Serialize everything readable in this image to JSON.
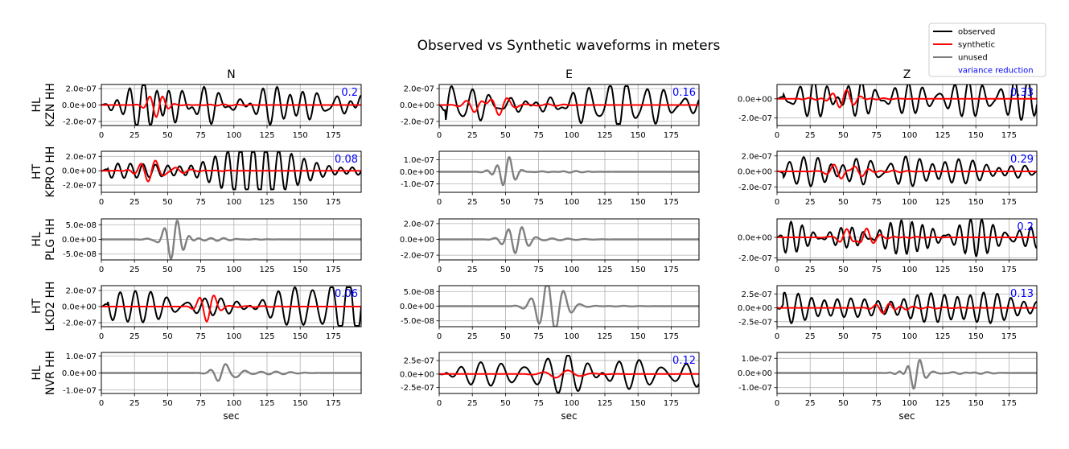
{
  "title": "Observed vs Synthetic waveforms in meters",
  "columns": [
    "N",
    "E",
    "Z"
  ],
  "xlabel": "sec",
  "xlim": [
    0,
    196
  ],
  "xticks": [
    0,
    25,
    50,
    75,
    100,
    125,
    150,
    175
  ],
  "legend": {
    "placement": "top-right",
    "entries": [
      {
        "label": "observed",
        "color": "#000000",
        "kind": "line"
      },
      {
        "label": "synthetic",
        "color": "#ff0000",
        "kind": "line"
      },
      {
        "label": "unused",
        "color": "#808080",
        "kind": "line"
      },
      {
        "label": "variance reduction",
        "color": "#0000ff",
        "kind": "text"
      }
    ]
  },
  "colors": {
    "observed": "#000000",
    "synthetic": "#ff0000",
    "unused": "#808080",
    "vr": "#0000ff",
    "grid": "#b0b0b0"
  },
  "chart_data": {
    "type": "line",
    "grid": true,
    "rows": [
      {
        "station_label": [
          "HL",
          "KZN HH"
        ],
        "panels": [
          {
            "component": "N",
            "used": true,
            "vr": "0.2",
            "ylim": [
              -2.5e-07,
              2.5e-07
            ],
            "yticks": [
              {
                "v": 2e-07,
                "t": "2.0e-07"
              },
              {
                "v": 0,
                "t": "0.0e+00"
              },
              {
                "v": -2e-07,
                "t": "-2.0e-07"
              }
            ],
            "obs": {
              "seed": 11,
              "amp": 2.4e-07,
              "period": 12,
              "decay": false
            },
            "syn": {
              "seed": 12,
              "amp": 2.3e-07,
              "period": 11,
              "center": 44,
              "width": 9
            }
          },
          {
            "component": "E",
            "used": true,
            "vr": "0.16",
            "ylim": [
              -2.5e-07,
              2.5e-07
            ],
            "yticks": [
              {
                "v": 2e-07,
                "t": "2.0e-07"
              },
              {
                "v": 0,
                "t": "0.0e+00"
              },
              {
                "v": -2e-07,
                "t": "-2.0e-07"
              }
            ],
            "obs": {
              "seed": 21,
              "amp": 2.3e-07,
              "period": 12,
              "decay": false
            },
            "syn": {
              "seed": 22,
              "amp": 2e-07,
              "period": 12,
              "center": 38,
              "width": 14
            }
          },
          {
            "component": "Z",
            "used": true,
            "vr": "0.33",
            "ylim": [
              -2.8e-07,
              1.5e-07
            ],
            "yticks": [
              {
                "v": 0,
                "t": "0.0e+00"
              },
              {
                "v": -2e-07,
                "t": "-2.0e-07"
              }
            ],
            "obs": {
              "seed": 31,
              "amp": 2.2e-07,
              "period": 11,
              "decay": false
            },
            "syn": {
              "seed": 32,
              "amp": 1.2e-07,
              "period": 12,
              "center": 48,
              "width": 18
            }
          }
        ]
      },
      {
        "station_label": [
          "HT",
          "KPRO HH"
        ],
        "panels": [
          {
            "component": "N",
            "used": true,
            "vr": "0.08",
            "ylim": [
              -3e-07,
              2.7e-07
            ],
            "yticks": [
              {
                "v": 2e-07,
                "t": "2.0e-07"
              },
              {
                "v": 0,
                "t": "0.0e+00"
              },
              {
                "v": -2e-07,
                "t": "-2.0e-07"
              }
            ],
            "obs": {
              "seed": 41,
              "amp": 2.6e-07,
              "period": 11,
              "decay": false
            },
            "syn": {
              "seed": 42,
              "amp": 1.5e-07,
              "period": 12,
              "center": 40,
              "width": 16
            }
          },
          {
            "component": "E",
            "used": false,
            "ylim": [
              -1.7e-07,
              1.7e-07
            ],
            "yticks": [
              {
                "v": 1e-07,
                "t": "1.0e-07"
              },
              {
                "v": 0,
                "t": "0.0e+00"
              },
              {
                "v": -1e-07,
                "t": "-1.0e-07"
              }
            ],
            "unused": {
              "seed": 51,
              "amp": 1.7e-07,
              "period": 11,
              "center": 50,
              "width": 10
            }
          },
          {
            "component": "Z",
            "used": true,
            "vr": "0.29",
            "ylim": [
              -2.7e-07,
              2.6e-07
            ],
            "yticks": [
              {
                "v": 2e-07,
                "t": "2.0e-07"
              },
              {
                "v": 0,
                "t": "0.0e+00"
              },
              {
                "v": -2e-07,
                "t": "-2.0e-07"
              }
            ],
            "obs": {
              "seed": 61,
              "amp": 2.5e-07,
              "period": 11,
              "decay": false
            },
            "syn": {
              "seed": 62,
              "amp": 1.4e-07,
              "period": 12,
              "center": 52,
              "width": 14
            }
          }
        ]
      },
      {
        "station_label": [
          "HL",
          "PLG HH"
        ],
        "panels": [
          {
            "component": "N",
            "used": false,
            "ylim": [
              -7e-08,
              7e-08
            ],
            "yticks": [
              {
                "v": 5e-08,
                "t": "5.0e-08"
              },
              {
                "v": 0,
                "t": "0.0e+00"
              },
              {
                "v": -5e-08,
                "t": "-5.0e-08"
              }
            ],
            "unused": {
              "seed": 71,
              "amp": 7e-08,
              "period": 11,
              "center": 55,
              "width": 12
            }
          },
          {
            "component": "E",
            "used": false,
            "ylim": [
              -2.6e-07,
              2.6e-07
            ],
            "yticks": [
              {
                "v": 2e-07,
                "t": "2.0e-07"
              },
              {
                "v": 0,
                "t": "0.0e+00"
              },
              {
                "v": -2e-07,
                "t": "-2.0e-07"
              }
            ],
            "unused": {
              "seed": 81,
              "amp": 2.5e-07,
              "period": 12,
              "center": 58,
              "width": 10
            }
          },
          {
            "component": "Z",
            "used": true,
            "vr": "0.2",
            "ylim": [
              -2.2e-07,
              1.8e-07
            ],
            "yticks": [
              {
                "v": 0,
                "t": "0.0e+00"
              },
              {
                "v": -2e-07,
                "t": "-2.0e-07"
              }
            ],
            "obs": {
              "seed": 91,
              "amp": 2.1e-07,
              "period": 10,
              "decay": false
            },
            "syn": {
              "seed": 92,
              "amp": 1.8e-07,
              "period": 11,
              "center": 58,
              "width": 12
            }
          }
        ]
      },
      {
        "station_label": [
          "HT",
          "LKD2 HH"
        ],
        "panels": [
          {
            "component": "N",
            "used": true,
            "vr": "0.06",
            "ylim": [
              -2.5e-07,
              2.6e-07
            ],
            "yticks": [
              {
                "v": 2e-07,
                "t": "2.0e-07"
              },
              {
                "v": 0,
                "t": "0.0e+00"
              },
              {
                "v": -2e-07,
                "t": "-2.0e-07"
              }
            ],
            "obs": {
              "seed": 101,
              "amp": 2.4e-07,
              "period": 11,
              "decay": false
            },
            "syn": {
              "seed": 102,
              "amp": 2.3e-07,
              "period": 11,
              "center": 80,
              "width": 9
            }
          },
          {
            "component": "E",
            "used": false,
            "ylim": [
              -7e-08,
              7e-08
            ],
            "yticks": [
              {
                "v": 5e-08,
                "t": "5.0e-08"
              },
              {
                "v": 0,
                "t": "0.0e+00"
              },
              {
                "v": -5e-08,
                "t": "-5.0e-08"
              }
            ],
            "unused": {
              "seed": 111,
              "amp": 7e-08,
              "period": 12,
              "center": 85,
              "width": 14
            }
          },
          {
            "component": "Z",
            "used": true,
            "vr": "0.13",
            "ylim": [
              -3.4e-07,
              4e-07
            ],
            "yticks": [
              {
                "v": 2.5e-07,
                "t": "2.5e-07"
              },
              {
                "v": 0,
                "t": "0.0e+00"
              },
              {
                "v": -2.5e-07,
                "t": "-2.5e-07"
              }
            ],
            "obs": {
              "seed": 121,
              "amp": 3.6e-07,
              "period": 12,
              "decay": false
            },
            "syn": {
              "seed": 122,
              "amp": 1.6e-07,
              "period": 12,
              "center": 85,
              "width": 12
            }
          }
        ]
      },
      {
        "station_label": [
          "HL",
          "NVR HH"
        ],
        "panels": [
          {
            "component": "N",
            "used": false,
            "ylim": [
              -1.2e-07,
              1.2e-07
            ],
            "yticks": [
              {
                "v": 1e-07,
                "t": "1.0e-07"
              },
              {
                "v": 0,
                "t": "0.0e+00"
              },
              {
                "v": -1e-07,
                "t": "-1.0e-07"
              }
            ],
            "unused": {
              "seed": 131,
              "amp": 1.2e-07,
              "period": 11,
              "center": 95,
              "width": 10
            }
          },
          {
            "component": "E",
            "used": true,
            "vr": "0.12",
            "ylim": [
              -3.6e-07,
              4e-07
            ],
            "yticks": [
              {
                "v": 2.5e-07,
                "t": "2.5e-07"
              },
              {
                "v": 0,
                "t": "0.0e+00"
              },
              {
                "v": -2.5e-07,
                "t": "-2.5e-07"
              }
            ],
            "obs": {
              "seed": 141,
              "amp": 3.4e-07,
              "period": 16,
              "decay": false
            },
            "syn": {
              "seed": 142,
              "amp": 1.2e-07,
              "period": 16,
              "center": 95,
              "width": 16
            }
          },
          {
            "component": "Z",
            "used": false,
            "ylim": [
              -1.4e-07,
              1.4e-07
            ],
            "yticks": [
              {
                "v": 1e-07,
                "t": "1.0e-07"
              },
              {
                "v": 0,
                "t": "0.0e+00"
              },
              {
                "v": -1e-07,
                "t": "-1.0e-07"
              }
            ],
            "unused": {
              "seed": 151,
              "amp": 1.4e-07,
              "period": 11,
              "center": 100,
              "width": 9
            }
          }
        ]
      }
    ]
  }
}
